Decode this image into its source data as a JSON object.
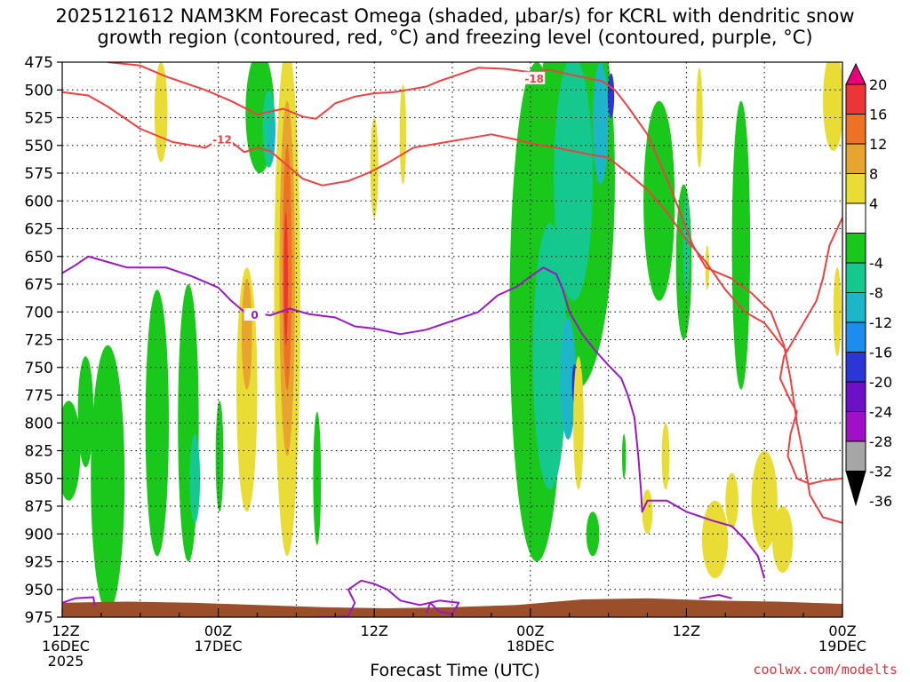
{
  "title_line1": "2025121612 NAM3KM Forecast Omega (shaded, μbar/s) for KCRL with dendritic snow",
  "title_line2": "growth region (contoured, red, °C) and freezing level (contoured, purple, °C)",
  "xlabel": "Forecast Time (UTC)",
  "credit": "coolwx.com/modelts",
  "chart_data": {
    "type": "heatmap",
    "title": "2025121612 NAM3KM Forecast Omega (shaded, μbar/s) for KCRL with dendritic snow growth region (contoured, red, °C) and freezing level (contoured, purple, °C)",
    "xlabel": "Forecast Time (UTC)",
    "ylabel": "",
    "x_unit": "forecast hour",
    "xlim": [
      0,
      60
    ],
    "ylim": [
      475,
      975
    ],
    "y_inverted": true,
    "yticks": [
      475,
      500,
      525,
      550,
      575,
      600,
      625,
      650,
      675,
      700,
      725,
      750,
      775,
      800,
      825,
      850,
      875,
      900,
      925,
      950,
      975
    ],
    "xticks": [
      {
        "hour": 0,
        "lines": [
          "12Z",
          "16DEC",
          "2025"
        ]
      },
      {
        "hour": 12,
        "lines": [
          "00Z",
          "17DEC"
        ]
      },
      {
        "hour": 24,
        "lines": [
          "12Z"
        ]
      },
      {
        "hour": 36,
        "lines": [
          "00Z",
          "18DEC"
        ]
      },
      {
        "hour": 48,
        "lines": [
          "12Z"
        ]
      },
      {
        "hour": 60,
        "lines": [
          "00Z",
          "19DEC"
        ]
      }
    ],
    "grid": true,
    "colorbar": {
      "labels": [
        "20",
        "16",
        "12",
        "8",
        "4",
        "-4",
        "-8",
        "-12",
        "-16",
        "-20",
        "-24",
        "-28",
        "-32",
        "-36"
      ],
      "bins": [
        {
          "range": [
            20,
            24
          ],
          "color": "#e8007a"
        },
        {
          "range": [
            16,
            20
          ],
          "color": "#ee3536"
        },
        {
          "range": [
            12,
            16
          ],
          "color": "#ec7225"
        },
        {
          "range": [
            8,
            12
          ],
          "color": "#e7a42f"
        },
        {
          "range": [
            4,
            8
          ],
          "color": "#e9dc34"
        },
        {
          "range": [
            -4,
            4
          ],
          "color": "#ffffff"
        },
        {
          "range": [
            -8,
            -4
          ],
          "color": "#19c81b"
        },
        {
          "range": [
            -12,
            -8
          ],
          "color": "#15c98e"
        },
        {
          "range": [
            -16,
            -12
          ],
          "color": "#1cb6c8"
        },
        {
          "range": [
            -20,
            -16
          ],
          "color": "#1c8ced"
        },
        {
          "range": [
            -24,
            -20
          ],
          "color": "#2a37d6"
        },
        {
          "range": [
            -28,
            -24
          ],
          "color": "#6d10c8"
        },
        {
          "range": [
            -32,
            -28
          ],
          "color": "#a010c6"
        },
        {
          "range": [
            -36,
            -32
          ],
          "color": "#a6a6a6"
        },
        {
          "range": [
            -40,
            -36
          ],
          "color": "#000000"
        }
      ]
    },
    "omega_blobs": [
      {
        "x": 0.5,
        "p": 825,
        "rx": 0.9,
        "rp": 45,
        "value": -6
      },
      {
        "x": 1.8,
        "p": 790,
        "rx": 0.6,
        "rp": 50,
        "value": -6
      },
      {
        "x": 3.5,
        "p": 850,
        "rx": 1.3,
        "rp": 120,
        "value": -6
      },
      {
        "x": 7.3,
        "p": 800,
        "rx": 0.9,
        "rp": 120,
        "value": -6
      },
      {
        "x": 9.7,
        "p": 800,
        "rx": 0.8,
        "rp": 125,
        "value": -6
      },
      {
        "x": 10.2,
        "p": 850,
        "rx": 0.4,
        "rp": 40,
        "value": -9
      },
      {
        "x": 12.1,
        "p": 830,
        "rx": 0.3,
        "rp": 50,
        "value": -6
      },
      {
        "x": 7.6,
        "p": 520,
        "rx": 0.5,
        "rp": 45,
        "value": 6
      },
      {
        "x": 15.2,
        "p": 520,
        "rx": 1.1,
        "rp": 55,
        "value": -6
      },
      {
        "x": 15.9,
        "p": 535,
        "rx": 0.5,
        "rp": 35,
        "value": -10
      },
      {
        "x": 16.1,
        "p": 545,
        "rx": 0.25,
        "rp": 20,
        "value": -14
      },
      {
        "x": 14.2,
        "p": 770,
        "rx": 0.8,
        "rp": 110,
        "value": 6
      },
      {
        "x": 14.2,
        "p": 720,
        "rx": 0.4,
        "rp": 50,
        "value": 9
      },
      {
        "x": 17.3,
        "p": 690,
        "rx": 1.0,
        "rp": 230,
        "value": 6
      },
      {
        "x": 17.3,
        "p": 670,
        "rx": 0.6,
        "rp": 160,
        "value": 9
      },
      {
        "x": 17.3,
        "p": 660,
        "rx": 0.35,
        "rp": 110,
        "value": 13
      },
      {
        "x": 17.2,
        "p": 670,
        "rx": 0.15,
        "rp": 60,
        "value": 17
      },
      {
        "x": 19.6,
        "p": 850,
        "rx": 0.3,
        "rp": 60,
        "value": -6
      },
      {
        "x": 24.0,
        "p": 570,
        "rx": 0.3,
        "rp": 45,
        "value": 6
      },
      {
        "x": 26.2,
        "p": 540,
        "rx": 0.25,
        "rp": 45,
        "value": 6
      },
      {
        "x": 36.5,
        "p": 700,
        "rx": 2.1,
        "rp": 225,
        "value": -6
      },
      {
        "x": 39.5,
        "p": 580,
        "rx": 3.0,
        "rp": 190,
        "value": -6
      },
      {
        "x": 37.5,
        "p": 740,
        "rx": 1.3,
        "rp": 120,
        "value": -10
      },
      {
        "x": 39.3,
        "p": 580,
        "rx": 1.5,
        "rp": 110,
        "value": -10
      },
      {
        "x": 38.9,
        "p": 760,
        "rx": 0.6,
        "rp": 55,
        "value": -14
      },
      {
        "x": 39.4,
        "p": 765,
        "rx": 0.2,
        "rp": 18,
        "value": -22
      },
      {
        "x": 41.4,
        "p": 530,
        "rx": 0.6,
        "rp": 55,
        "value": -14
      },
      {
        "x": 42.2,
        "p": 505,
        "rx": 0.25,
        "rp": 20,
        "value": -22
      },
      {
        "x": 39.7,
        "p": 800,
        "rx": 0.4,
        "rp": 60,
        "value": 6
      },
      {
        "x": 40.8,
        "p": 900,
        "rx": 0.5,
        "rp": 20,
        "value": -6
      },
      {
        "x": 43.2,
        "p": 830,
        "rx": 0.15,
        "rp": 20,
        "value": -6
      },
      {
        "x": 45.9,
        "p": 600,
        "rx": 1.2,
        "rp": 90,
        "value": -6
      },
      {
        "x": 47.8,
        "p": 655,
        "rx": 0.6,
        "rp": 70,
        "value": -6
      },
      {
        "x": 48.0,
        "p": 640,
        "rx": 0.25,
        "rp": 45,
        "value": -10
      },
      {
        "x": 49.6,
        "p": 660,
        "rx": 0.15,
        "rp": 20,
        "value": 6
      },
      {
        "x": 52.2,
        "p": 640,
        "rx": 0.7,
        "rp": 130,
        "value": -6
      },
      {
        "x": 49.0,
        "p": 525,
        "rx": 0.25,
        "rp": 45,
        "value": 6
      },
      {
        "x": 46.4,
        "p": 830,
        "rx": 0.3,
        "rp": 30,
        "value": 6
      },
      {
        "x": 45.0,
        "p": 880,
        "rx": 0.4,
        "rp": 20,
        "value": 6
      },
      {
        "x": 50.2,
        "p": 905,
        "rx": 1.0,
        "rp": 35,
        "value": 6
      },
      {
        "x": 51.5,
        "p": 870,
        "rx": 0.5,
        "rp": 25,
        "value": 6
      },
      {
        "x": 54.0,
        "p": 870,
        "rx": 1.0,
        "rp": 45,
        "value": 6
      },
      {
        "x": 55.4,
        "p": 905,
        "rx": 0.8,
        "rp": 30,
        "value": 6
      },
      {
        "x": 59.3,
        "p": 510,
        "rx": 0.8,
        "rp": 45,
        "value": 6
      },
      {
        "x": 59.6,
        "p": 700,
        "rx": 0.3,
        "rp": 40,
        "value": 6
      }
    ],
    "dgz_contours": [
      {
        "label": "-12",
        "label_at": [
          12.3,
          545
        ],
        "points": [
          [
            0,
            502
          ],
          [
            2,
            505
          ],
          [
            3.5,
            515
          ],
          [
            6,
            535
          ],
          [
            8.5,
            547
          ],
          [
            11,
            552
          ],
          [
            12.5,
            542
          ],
          [
            14,
            556
          ],
          [
            15,
            552
          ],
          [
            16,
            555
          ],
          [
            17,
            565
          ],
          [
            18.5,
            580
          ],
          [
            20,
            586
          ],
          [
            22,
            582
          ],
          [
            23.5,
            575
          ],
          [
            25,
            566
          ],
          [
            27,
            552
          ],
          [
            29,
            548
          ],
          [
            31,
            544
          ],
          [
            33,
            540
          ],
          [
            35,
            545
          ],
          [
            36,
            548
          ],
          [
            38,
            552
          ],
          [
            40.5,
            558
          ],
          [
            42,
            561
          ],
          [
            43.5,
            575
          ],
          [
            45,
            590
          ],
          [
            46.5,
            610
          ],
          [
            48,
            635
          ],
          [
            49.5,
            655
          ],
          [
            51,
            680
          ],
          [
            52.5,
            700
          ],
          [
            54,
            710
          ],
          [
            55,
            725
          ],
          [
            55.7,
            735
          ]
        ]
      },
      {
        "label": "-18",
        "label_at": [
          36.3,
          490
        ],
        "points": [
          [
            3.5,
            475
          ],
          [
            6,
            478
          ],
          [
            8,
            488
          ],
          [
            11,
            500
          ],
          [
            13,
            510
          ],
          [
            15,
            522
          ],
          [
            17,
            517
          ],
          [
            18.5,
            524
          ],
          [
            19.5,
            526
          ],
          [
            20.5,
            517
          ],
          [
            21,
            512
          ],
          [
            22.5,
            506
          ],
          [
            24,
            503
          ],
          [
            25.5,
            502
          ],
          [
            26.5,
            500
          ],
          [
            28,
            497
          ],
          [
            29,
            492
          ],
          [
            30,
            488
          ],
          [
            32,
            480
          ],
          [
            34,
            481
          ],
          [
            36,
            484
          ],
          [
            37.5,
            482
          ],
          [
            39,
            486
          ],
          [
            41.5,
            492
          ],
          [
            42.5,
            500
          ],
          [
            43.5,
            515
          ],
          [
            45,
            540
          ],
          [
            46.5,
            580
          ],
          [
            47.5,
            610
          ],
          [
            48.5,
            640
          ],
          [
            49.5,
            660
          ],
          [
            51.5,
            670
          ],
          [
            53,
            683
          ],
          [
            54.5,
            700
          ],
          [
            55.5,
            730
          ],
          [
            56,
            760
          ],
          [
            56.5,
            800
          ],
          [
            57,
            830
          ],
          [
            57.5,
            865
          ],
          [
            58.5,
            885
          ],
          [
            60,
            890
          ]
        ]
      },
      {
        "label": "",
        "label_at": null,
        "points": [
          [
            60,
            615
          ],
          [
            59,
            640
          ],
          [
            58.5,
            670
          ],
          [
            58,
            690
          ],
          [
            57,
            710
          ],
          [
            55.5,
            740
          ],
          [
            55.2,
            760
          ],
          [
            56,
            780
          ],
          [
            56.5,
            790
          ],
          [
            56,
            810
          ],
          [
            55.8,
            830
          ],
          [
            56.5,
            850
          ],
          [
            57.5,
            855
          ],
          [
            58.5,
            852
          ],
          [
            60,
            850
          ]
        ]
      }
    ],
    "freezing_contours": [
      {
        "label": "0",
        "label_at": [
          14.8,
          703
        ],
        "points": [
          [
            0,
            665
          ],
          [
            1,
            658
          ],
          [
            2,
            650
          ],
          [
            3.5,
            655
          ],
          [
            5,
            660
          ],
          [
            8,
            660
          ],
          [
            10,
            668
          ],
          [
            12,
            678
          ],
          [
            13,
            690
          ],
          [
            14,
            700
          ],
          [
            16,
            703
          ],
          [
            17.5,
            697
          ],
          [
            19,
            702
          ],
          [
            21,
            705
          ],
          [
            22.5,
            713
          ],
          [
            24,
            715
          ],
          [
            26,
            720
          ],
          [
            28,
            716
          ],
          [
            30,
            708
          ],
          [
            32,
            700
          ],
          [
            33.5,
            685
          ],
          [
            35,
            677
          ],
          [
            36,
            668
          ],
          [
            37,
            660
          ],
          [
            38,
            666
          ],
          [
            38.5,
            680
          ],
          [
            39,
            700
          ],
          [
            40,
            720
          ],
          [
            41,
            735
          ],
          [
            42,
            748
          ],
          [
            43,
            760
          ],
          [
            43.5,
            775
          ],
          [
            44,
            795
          ],
          [
            44.3,
            830
          ],
          [
            44.5,
            860
          ],
          [
            44.6,
            880
          ],
          [
            45,
            870
          ],
          [
            46.5,
            870
          ],
          [
            48,
            880
          ],
          [
            50,
            888
          ],
          [
            51.5,
            893
          ],
          [
            52.5,
            905
          ],
          [
            53.5,
            920
          ],
          [
            54,
            940
          ]
        ]
      },
      {
        "label": "",
        "label_at": null,
        "points": [
          [
            0,
            962
          ],
          [
            1,
            958
          ],
          [
            2.4,
            957
          ],
          [
            2.5,
            965
          ]
        ]
      },
      {
        "label": "",
        "label_at": null,
        "points": [
          [
            19.5,
            975
          ],
          [
            22,
            974
          ],
          [
            22.5,
            962
          ],
          [
            22,
            950
          ],
          [
            23,
            942
          ],
          [
            24,
            945
          ],
          [
            25,
            950
          ],
          [
            26,
            960
          ],
          [
            27.5,
            964
          ],
          [
            29,
            960
          ],
          [
            30.5,
            962
          ],
          [
            30,
            972
          ],
          [
            29,
            970
          ],
          [
            28.3,
            962
          ],
          [
            28,
            972
          ]
        ]
      },
      {
        "label": "",
        "label_at": null,
        "points": [
          [
            49,
            958
          ],
          [
            50.5,
            955
          ],
          [
            51.5,
            958
          ]
        ]
      }
    ],
    "ground_top": [
      [
        0,
        962
      ],
      [
        5,
        961
      ],
      [
        10,
        962
      ],
      [
        15,
        964
      ],
      [
        20,
        966
      ],
      [
        25,
        967
      ],
      [
        30,
        966
      ],
      [
        35,
        964
      ],
      [
        40,
        959
      ],
      [
        45,
        958
      ],
      [
        50,
        960
      ],
      [
        55,
        961
      ],
      [
        60,
        963
      ]
    ]
  }
}
